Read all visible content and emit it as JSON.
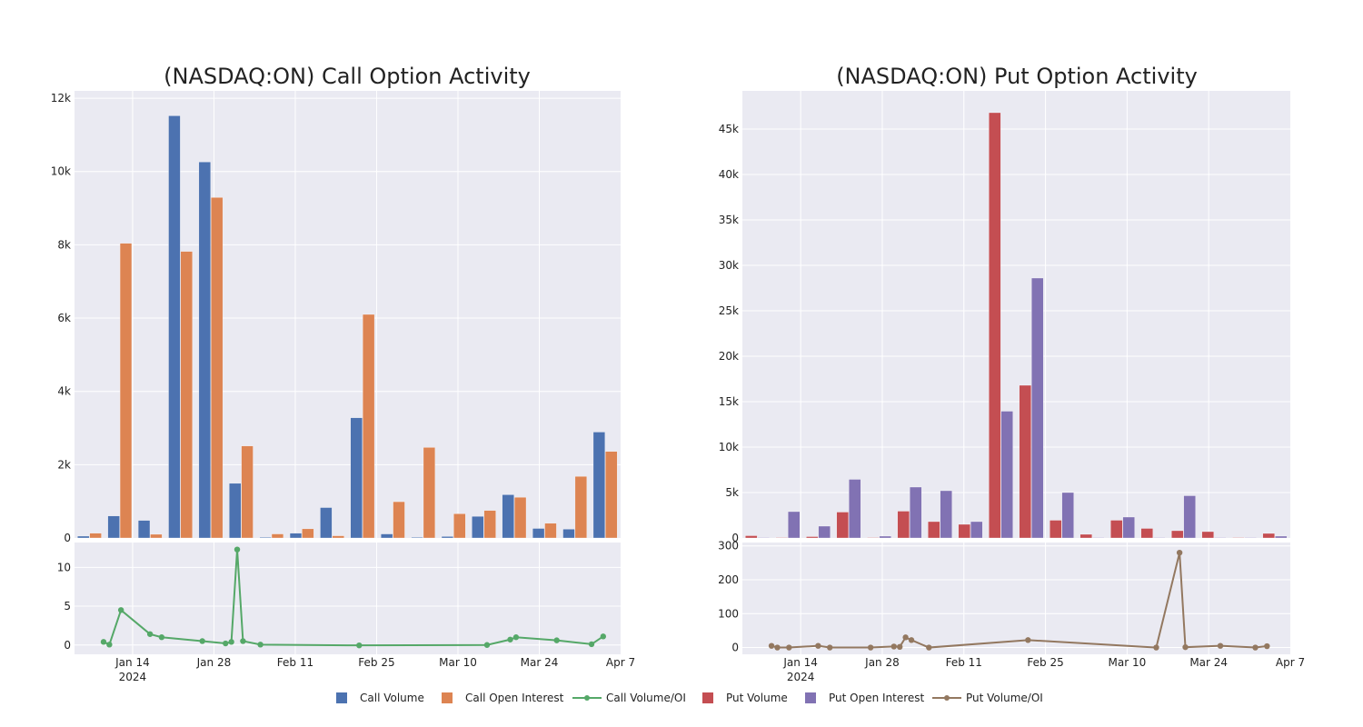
{
  "colors": {
    "call_volume": "#4c72b0",
    "call_oi": "#dd8452",
    "call_ratio": "#55a868",
    "put_volume": "#c44e52",
    "put_oi": "#8172b3",
    "put_ratio": "#937860",
    "plot_bg": "#eaeaf2",
    "grid": "#ffffff"
  },
  "chart_data": [
    {
      "type": "bar",
      "title": "(NASDAQ:ON) Call Option Activity",
      "x_ticks": [
        {
          "date": "2024-01-14",
          "label": "Jan 14",
          "sublabel": "2024"
        },
        {
          "date": "2024-01-28",
          "label": "Jan 28"
        },
        {
          "date": "2024-02-11",
          "label": "Feb 11"
        },
        {
          "date": "2024-02-25",
          "label": "Feb 25"
        },
        {
          "date": "2024-03-10",
          "label": "Mar 10"
        },
        {
          "date": "2024-03-24",
          "label": "Mar 24"
        },
        {
          "date": "2024-04-07",
          "label": "Apr 7"
        }
      ],
      "x_range": [
        "2024-01-04",
        "2024-04-07"
      ],
      "y_ticks": [
        {
          "v": 0,
          "label": "0"
        },
        {
          "v": 2000,
          "label": "2k"
        },
        {
          "v": 4000,
          "label": "4k"
        },
        {
          "v": 6000,
          "label": "6k"
        },
        {
          "v": 8000,
          "label": "8k"
        },
        {
          "v": 10000,
          "label": "10k"
        },
        {
          "v": 12000,
          "label": "12k"
        }
      ],
      "ylim": [
        0,
        12200
      ],
      "series": [
        {
          "name": "Call Volume",
          "color_key": "call_volume",
          "values": [
            50,
            600,
            480,
            11520,
            10260,
            1490,
            20,
            130,
            830,
            3280,
            110,
            20,
            40,
            590,
            1180,
            260,
            240,
            2890
          ]
        },
        {
          "name": "Call Open Interest",
          "color_key": "call_oi",
          "values": [
            130,
            8040,
            100,
            7820,
            9290,
            2510,
            110,
            250,
            60,
            6100,
            990,
            2470,
            660,
            750,
            1110,
            400,
            1680,
            2360
          ]
        }
      ],
      "ratio": {
        "name": "Call Volume/OI",
        "color_key": "call_ratio",
        "ylim": [
          -1.2,
          13.2
        ],
        "y_ticks": [
          {
            "v": 0,
            "label": "0"
          },
          {
            "v": 5,
            "label": "5"
          },
          {
            "v": 10,
            "label": "10"
          }
        ],
        "points": [
          {
            "date": "2024-01-09",
            "value": 0.4
          },
          {
            "date": "2024-01-10",
            "value": 0.05
          },
          {
            "date": "2024-01-12",
            "value": 4.5
          },
          {
            "date": "2024-01-17",
            "value": 1.4
          },
          {
            "date": "2024-01-19",
            "value": 1.0
          },
          {
            "date": "2024-01-26",
            "value": 0.5
          },
          {
            "date": "2024-01-30",
            "value": 0.2
          },
          {
            "date": "2024-01-31",
            "value": 0.4
          },
          {
            "date": "2024-02-01",
            "value": 12.3
          },
          {
            "date": "2024-02-02",
            "value": 0.5
          },
          {
            "date": "2024-02-05",
            "value": 0.05
          },
          {
            "date": "2024-02-22",
            "value": -0.05
          },
          {
            "date": "2024-03-15",
            "value": 0.0
          },
          {
            "date": "2024-03-19",
            "value": 0.7
          },
          {
            "date": "2024-03-20",
            "value": 1.0
          },
          {
            "date": "2024-03-27",
            "value": 0.6
          },
          {
            "date": "2024-04-02",
            "value": 0.1
          },
          {
            "date": "2024-04-04",
            "value": 1.1
          }
        ]
      }
    },
    {
      "type": "bar",
      "title": "(NASDAQ:ON) Put Option Activity",
      "x_ticks": [
        {
          "date": "2024-01-14",
          "label": "Jan 14",
          "sublabel": "2024"
        },
        {
          "date": "2024-01-28",
          "label": "Jan 28"
        },
        {
          "date": "2024-02-11",
          "label": "Feb 11"
        },
        {
          "date": "2024-02-25",
          "label": "Feb 25"
        },
        {
          "date": "2024-03-10",
          "label": "Mar 10"
        },
        {
          "date": "2024-03-24",
          "label": "Mar 24"
        },
        {
          "date": "2024-04-07",
          "label": "Apr 7"
        }
      ],
      "x_range": [
        "2024-01-04",
        "2024-04-07"
      ],
      "y_ticks": [
        {
          "v": 0,
          "label": "0"
        },
        {
          "v": 5000,
          "label": "5k"
        },
        {
          "v": 10000,
          "label": "10k"
        },
        {
          "v": 15000,
          "label": "15k"
        },
        {
          "v": 20000,
          "label": "20k"
        },
        {
          "v": 25000,
          "label": "25k"
        },
        {
          "v": 30000,
          "label": "30k"
        },
        {
          "v": 35000,
          "label": "35k"
        },
        {
          "v": 40000,
          "label": "40k"
        },
        {
          "v": 45000,
          "label": "45k"
        }
      ],
      "ylim": [
        0,
        49200
      ],
      "series": [
        {
          "name": "Put Volume",
          "color_key": "put_volume",
          "values": [
            250,
            50,
            150,
            2850,
            50,
            2950,
            1800,
            1500,
            46800,
            16800,
            1950,
            400,
            1950,
            1050,
            800,
            700,
            50,
            500
          ]
        },
        {
          "name": "Put Open Interest",
          "color_key": "put_oi",
          "values": [
            50,
            2900,
            1300,
            6450,
            200,
            5600,
            5200,
            1800,
            13950,
            28600,
            5000,
            50,
            2300,
            50,
            4650,
            50,
            50,
            200
          ]
        }
      ],
      "ratio": {
        "name": "Put Volume/OI",
        "color_key": "put_ratio",
        "ylim": [
          -20,
          310
        ],
        "y_ticks": [
          {
            "v": 0,
            "label": "0"
          },
          {
            "v": 100,
            "label": "100"
          },
          {
            "v": 200,
            "label": "200"
          },
          {
            "v": 300,
            "label": "300"
          }
        ],
        "points": [
          {
            "date": "2024-01-09",
            "value": 5
          },
          {
            "date": "2024-01-10",
            "value": 0
          },
          {
            "date": "2024-01-12",
            "value": 0
          },
          {
            "date": "2024-01-17",
            "value": 5
          },
          {
            "date": "2024-01-19",
            "value": 0
          },
          {
            "date": "2024-01-26",
            "value": 0
          },
          {
            "date": "2024-01-30",
            "value": 3
          },
          {
            "date": "2024-01-31",
            "value": 2
          },
          {
            "date": "2024-02-01",
            "value": 30
          },
          {
            "date": "2024-02-02",
            "value": 22
          },
          {
            "date": "2024-02-05",
            "value": 0
          },
          {
            "date": "2024-02-22",
            "value": 22
          },
          {
            "date": "2024-03-15",
            "value": 0
          },
          {
            "date": "2024-03-19",
            "value": 280
          },
          {
            "date": "2024-03-20",
            "value": 1
          },
          {
            "date": "2024-03-26",
            "value": 5
          },
          {
            "date": "2024-04-01",
            "value": 0
          },
          {
            "date": "2024-04-03",
            "value": 4
          }
        ]
      }
    }
  ],
  "legend": {
    "placement": "bottom-center",
    "items": [
      {
        "label": "Call Volume",
        "kind": "square",
        "color_key": "call_volume"
      },
      {
        "label": "Call Open Interest",
        "kind": "square",
        "color_key": "call_oi"
      },
      {
        "label": "Call Volume/OI",
        "kind": "line",
        "color_key": "call_ratio"
      },
      {
        "label": "Put Volume",
        "kind": "square",
        "color_key": "put_volume"
      },
      {
        "label": "Put Open Interest",
        "kind": "square",
        "color_key": "put_oi"
      },
      {
        "label": "Put Volume/OI",
        "kind": "line",
        "color_key": "put_ratio"
      }
    ]
  }
}
